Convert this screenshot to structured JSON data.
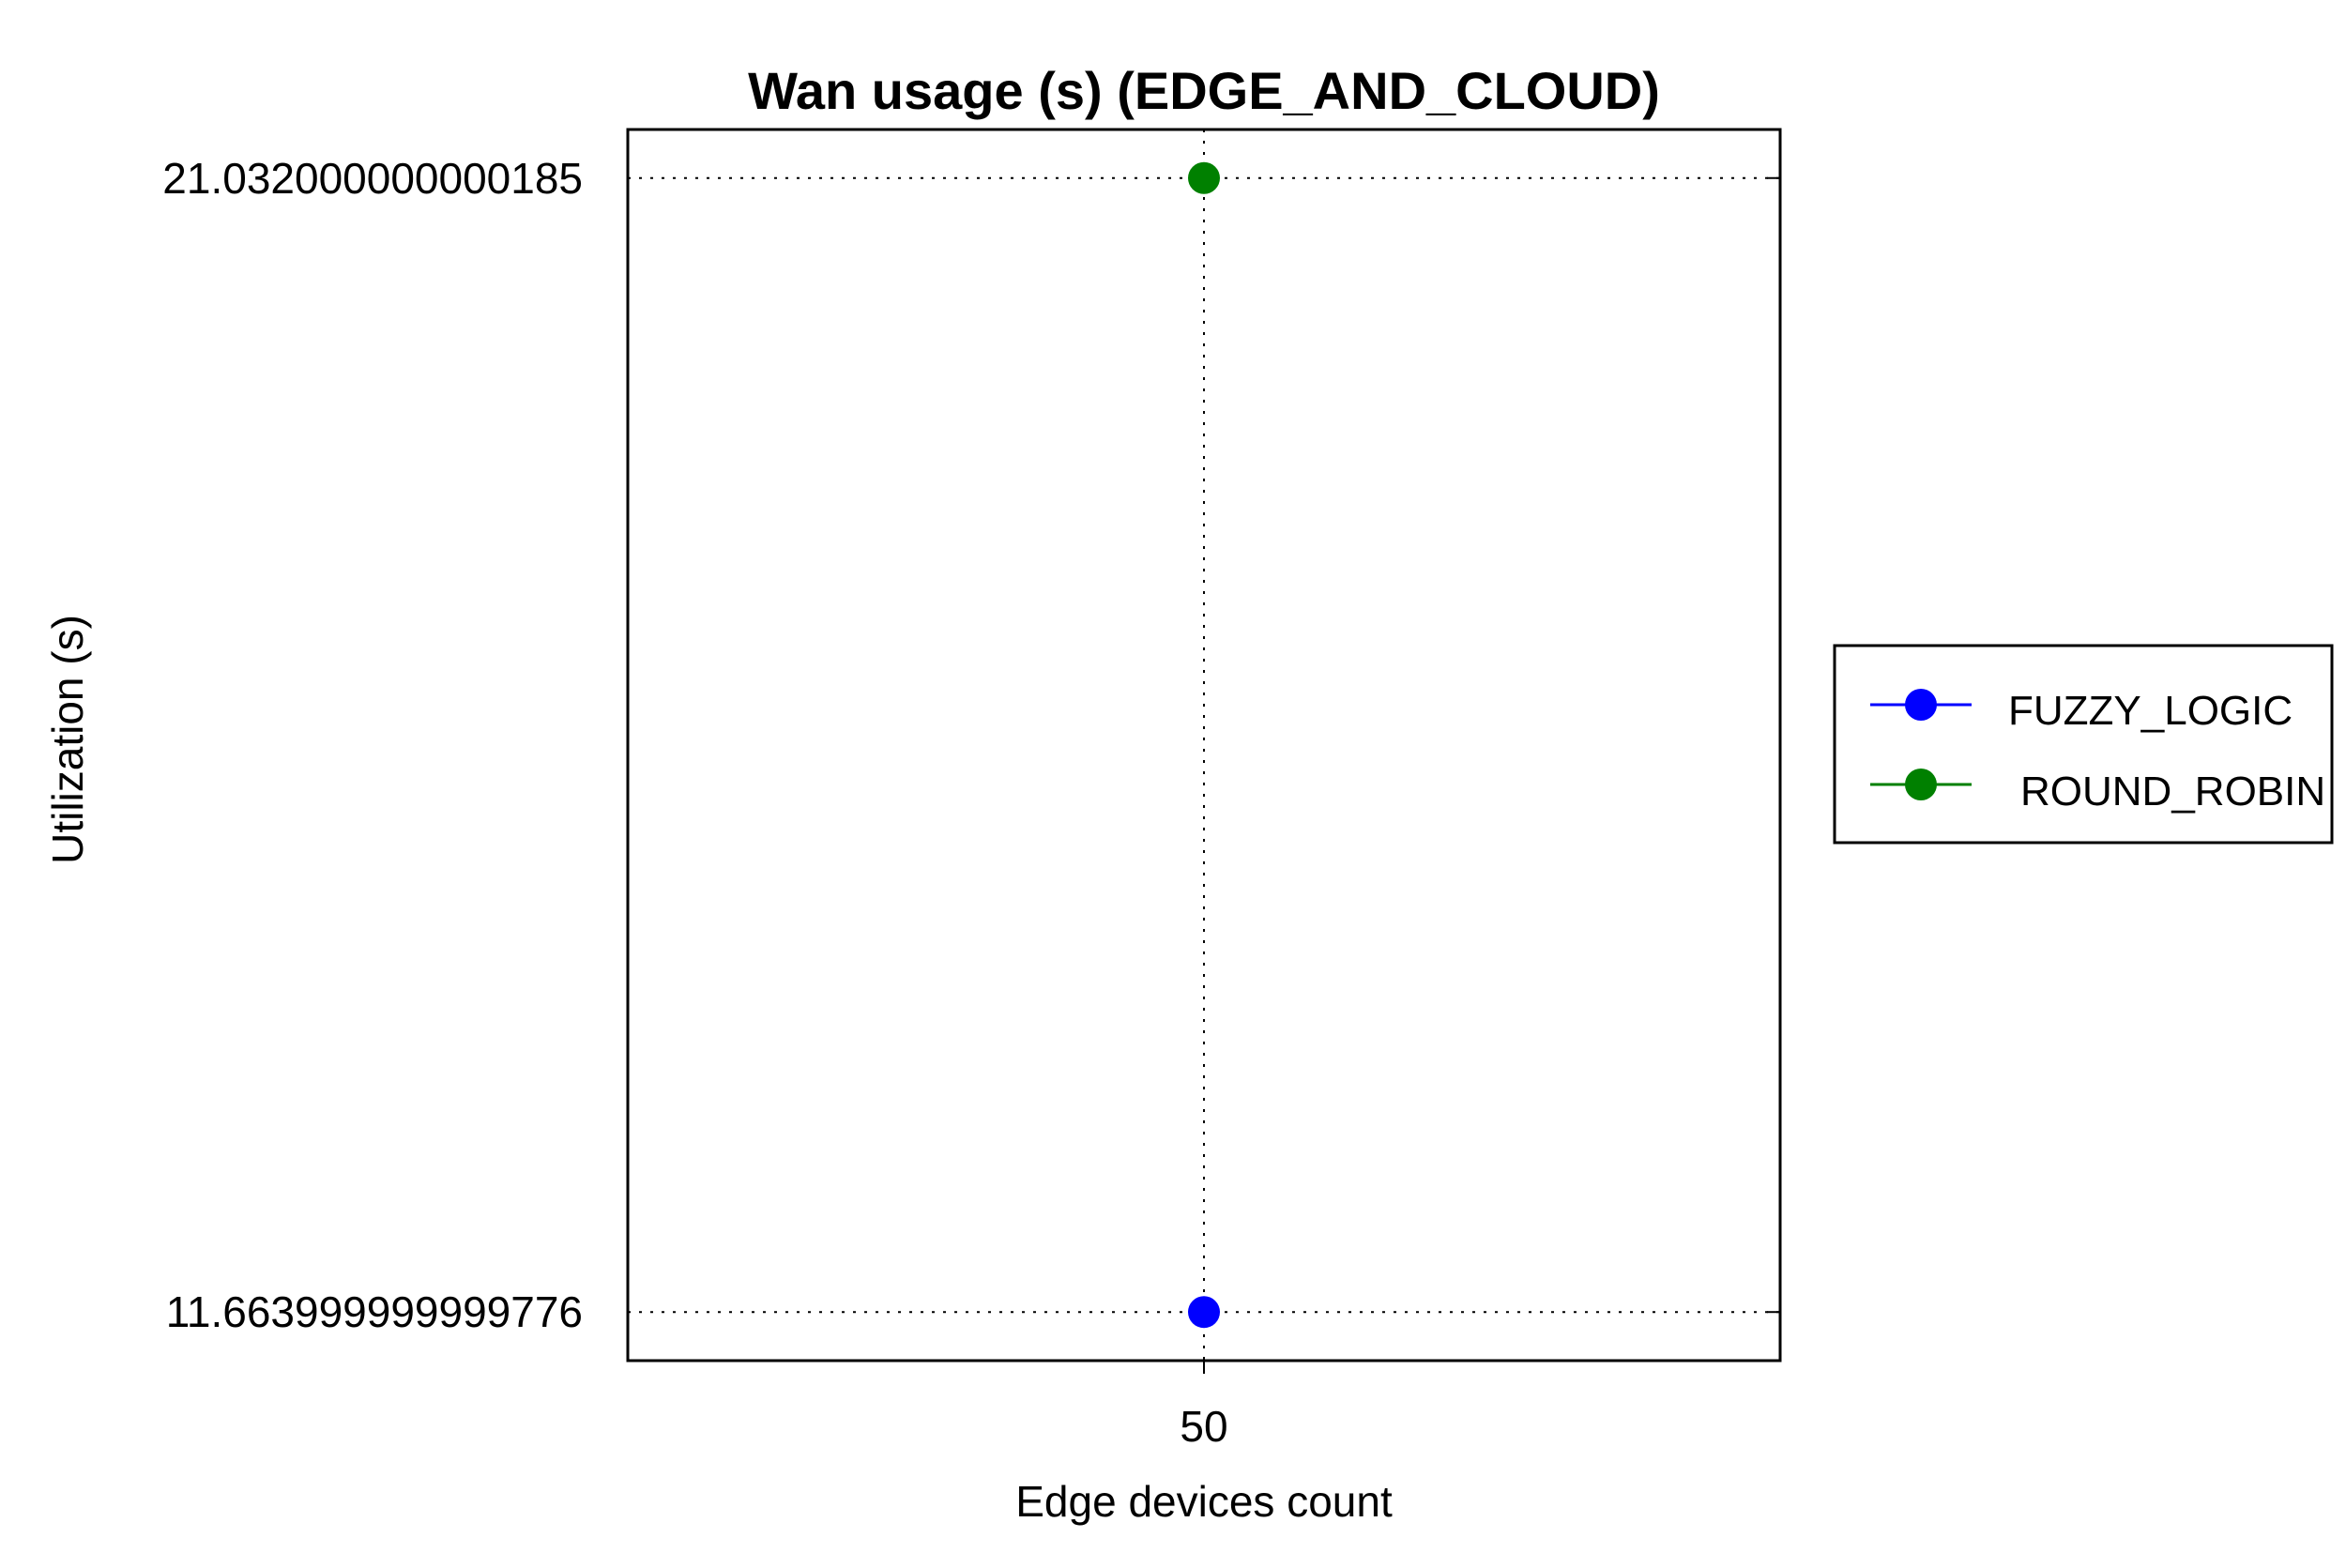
{
  "chart_data": {
    "type": "scatter",
    "title": "Wan usage (s) (EDGE_AND_CLOUD)",
    "xlabel": "Edge devices count",
    "ylabel": "Utilization (s)",
    "x_ticks": [
      "50"
    ],
    "y_ticks": [
      "11.663999999999776",
      "21.032000000000185"
    ],
    "ylim": [
      11.2626,
      21.4332
    ],
    "grid": true,
    "legend_position": "right",
    "series": [
      {
        "name": "FUZZY_LOGIC",
        "color": "#0000ff",
        "x": [
          50
        ],
        "y": [
          11.663999999999776
        ]
      },
      {
        "name": "ROUND_ROBIN",
        "color": "#008000",
        "x": [
          50
        ],
        "y": [
          21.032000000000185
        ]
      }
    ]
  }
}
